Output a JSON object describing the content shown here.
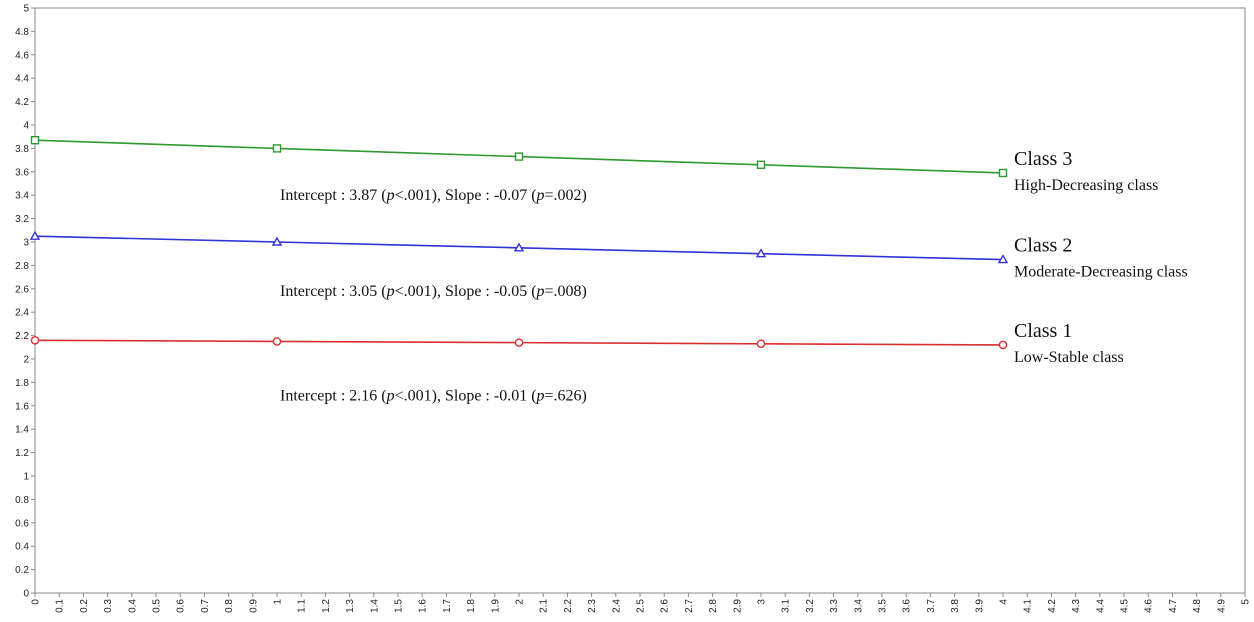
{
  "chart_data": {
    "type": "line",
    "xlim": [
      0,
      5
    ],
    "ylim": [
      0,
      5
    ],
    "x_ticks": [
      "0",
      "0.1",
      "0.2",
      "0.3",
      "0.4",
      "0.5",
      "0.6",
      "0.7",
      "0.8",
      "0.9",
      "1",
      "1.1",
      "1.2",
      "1.3",
      "1.4",
      "1.5",
      "1.6",
      "1.7",
      "1.8",
      "1.9",
      "2",
      "2.1",
      "2.2",
      "2.3",
      "2.4",
      "2.5",
      "2.6",
      "2.7",
      "2.8",
      "2.9",
      "3",
      "3.1",
      "3.2",
      "3.3",
      "3.4",
      "3.5",
      "3.6",
      "3.7",
      "3.8",
      "3.9",
      "4",
      "4.1",
      "4.2",
      "4.3",
      "4.4",
      "4.5",
      "4.6",
      "4.7",
      "4.8",
      "4.9",
      "5"
    ],
    "y_ticks": [
      "0",
      "0.2",
      "0.4",
      "0.6",
      "0.8",
      "1",
      "1.2",
      "1.4",
      "1.6",
      "1.8",
      "2",
      "2.2",
      "2.4",
      "2.6",
      "2.8",
      "3",
      "3.2",
      "3.4",
      "3.6",
      "3.8",
      "4",
      "4.2",
      "4.4",
      "4.6",
      "4.8",
      "5"
    ],
    "grid": false,
    "x": [
      0,
      1,
      2,
      3,
      4
    ],
    "series": [
      {
        "values": [
          3.87,
          3.8,
          3.73,
          3.66,
          3.59
        ],
        "color": "#2e9a2e",
        "marker": "square",
        "class_label": "Class 3",
        "class_desc": "High-Decreasing class",
        "annotation": {
          "prefix": "Intercept : 3.87 (",
          "p1": "p",
          "mid": "<.001), Slope : -0.07 (",
          "p2": "p",
          "suffix": "=.002)"
        }
      },
      {
        "values": [
          3.05,
          3.0,
          2.95,
          2.9,
          2.85
        ],
        "color": "#3232d8",
        "marker": "triangle",
        "class_label": "Class 2",
        "class_desc": "Moderate-Decreasing class",
        "annotation": {
          "prefix": "Intercept : 3.05 (",
          "p1": "p",
          "mid": "<.001), Slope : -0.05 (",
          "p2": "p",
          "suffix": "=.008)"
        }
      },
      {
        "values": [
          2.16,
          2.15,
          2.14,
          2.13,
          2.12
        ],
        "color": "#d83030",
        "marker": "circle",
        "class_label": "Class 1",
        "class_desc": "Low-Stable class",
        "annotation": {
          "prefix": "Intercept : 2.16 (",
          "p1": "p",
          "mid": "<.001), Slope : -0.01 (",
          "p2": "p",
          "suffix": "=.626)"
        }
      }
    ]
  }
}
